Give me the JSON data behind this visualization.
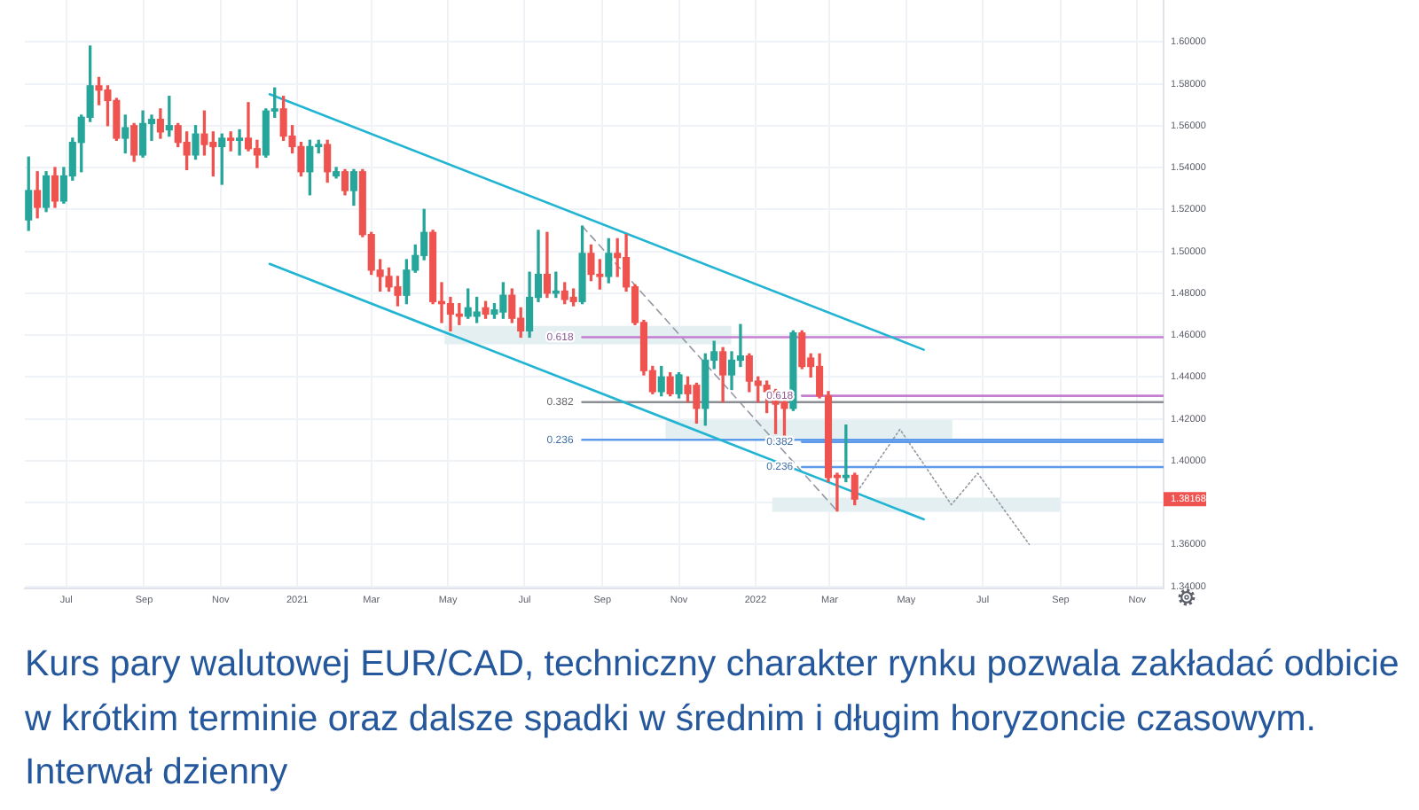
{
  "chart_data": {
    "type": "candlestick",
    "x": [
      "2020-06-01",
      "2020-06-08",
      "2020-06-15",
      "2020-06-22",
      "2020-06-29",
      "2020-07-06",
      "2020-07-13",
      "2020-07-20",
      "2020-07-27",
      "2020-08-03",
      "2020-08-10",
      "2020-08-17",
      "2020-08-24",
      "2020-08-31",
      "2020-09-07",
      "2020-09-14",
      "2020-09-21",
      "2020-09-28",
      "2020-10-05",
      "2020-10-12",
      "2020-10-19",
      "2020-10-26",
      "2020-11-02",
      "2020-11-09",
      "2020-11-16",
      "2020-11-23",
      "2020-11-30",
      "2020-12-07",
      "2020-12-14",
      "2020-12-21",
      "2020-12-28",
      "2021-01-04",
      "2021-01-11",
      "2021-01-18",
      "2021-01-25",
      "2021-02-01",
      "2021-02-08",
      "2021-02-15",
      "2021-02-22",
      "2021-03-01",
      "2021-03-08",
      "2021-03-15",
      "2021-03-22",
      "2021-03-29",
      "2021-04-05",
      "2021-04-12",
      "2021-04-19",
      "2021-04-26",
      "2021-05-03",
      "2021-05-10",
      "2021-05-17",
      "2021-05-24",
      "2021-05-31",
      "2021-06-07",
      "2021-06-14",
      "2021-06-21",
      "2021-06-28",
      "2021-07-05",
      "2021-07-12",
      "2021-07-19",
      "2021-07-26",
      "2021-08-02",
      "2021-08-09",
      "2021-08-16",
      "2021-08-23",
      "2021-08-30",
      "2021-09-06",
      "2021-09-13",
      "2021-09-20",
      "2021-09-27",
      "2021-10-04",
      "2021-10-11",
      "2021-10-18",
      "2021-10-25",
      "2021-11-01",
      "2021-11-08",
      "2021-11-15",
      "2021-11-22",
      "2021-11-29",
      "2021-12-06",
      "2021-12-13",
      "2021-12-20",
      "2021-12-27",
      "2022-01-03",
      "2022-01-10",
      "2022-01-17",
      "2022-01-24",
      "2022-01-31",
      "2022-02-07",
      "2022-02-14",
      "2022-02-21",
      "2022-02-28",
      "2022-03-07",
      "2022-03-14",
      "2022-03-21"
    ],
    "ohlc": [
      [
        1.515,
        1.545,
        1.51,
        1.529
      ],
      [
        1.529,
        1.538,
        1.516,
        1.521
      ],
      [
        1.521,
        1.538,
        1.519,
        1.536
      ],
      [
        1.536,
        1.54,
        1.521,
        1.524
      ],
      [
        1.524,
        1.54,
        1.523,
        1.536
      ],
      [
        1.536,
        1.554,
        1.534,
        1.552
      ],
      [
        1.552,
        1.565,
        1.538,
        1.564
      ],
      [
        1.564,
        1.598,
        1.562,
        1.579
      ],
      [
        1.579,
        1.583,
        1.57,
        1.577
      ],
      [
        1.577,
        1.579,
        1.56,
        1.572
      ],
      [
        1.572,
        1.573,
        1.553,
        1.554
      ],
      [
        1.554,
        1.565,
        1.547,
        1.559
      ],
      [
        1.56,
        1.561,
        1.543,
        1.546
      ],
      [
        1.546,
        1.567,
        1.545,
        1.561
      ],
      [
        1.561,
        1.565,
        1.553,
        1.563
      ],
      [
        1.563,
        1.568,
        1.554,
        1.557
      ],
      [
        1.558,
        1.574,
        1.555,
        1.56
      ],
      [
        1.56,
        1.561,
        1.55,
        1.552
      ],
      [
        1.552,
        1.557,
        1.539,
        1.546
      ],
      [
        1.546,
        1.56,
        1.544,
        1.556
      ],
      [
        1.556,
        1.567,
        1.546,
        1.551
      ],
      [
        1.552,
        1.557,
        1.536,
        1.55
      ],
      [
        1.55,
        1.556,
        1.532,
        1.554
      ],
      [
        1.554,
        1.557,
        1.548,
        1.553
      ],
      [
        1.553,
        1.558,
        1.546,
        1.554
      ],
      [
        1.554,
        1.571,
        1.548,
        1.549
      ],
      [
        1.549,
        1.553,
        1.54,
        1.546
      ],
      [
        1.546,
        1.568,
        1.545,
        1.567
      ],
      [
        1.567,
        1.578,
        1.564,
        1.568
      ],
      [
        1.568,
        1.574,
        1.553,
        1.555
      ],
      [
        1.555,
        1.56,
        1.547,
        1.55
      ],
      [
        1.55,
        1.552,
        1.536,
        1.538
      ],
      [
        1.538,
        1.553,
        1.527,
        1.55
      ],
      [
        1.55,
        1.553,
        1.547,
        1.551
      ],
      [
        1.551,
        1.553,
        1.533,
        1.538
      ],
      [
        1.536,
        1.54,
        1.535,
        1.538
      ],
      [
        1.538,
        1.539,
        1.527,
        1.529
      ],
      [
        1.529,
        1.539,
        1.522,
        1.538
      ],
      [
        1.538,
        1.539,
        1.507,
        1.508
      ],
      [
        1.508,
        1.509,
        1.489,
        1.491
      ],
      [
        1.491,
        1.496,
        1.481,
        1.488
      ],
      [
        1.488,
        1.492,
        1.481,
        1.483
      ],
      [
        1.483,
        1.488,
        1.474,
        1.479
      ],
      [
        1.479,
        1.496,
        1.475,
        1.491
      ],
      [
        1.491,
        1.503,
        1.49,
        1.498
      ],
      [
        1.498,
        1.52,
        1.496,
        1.509
      ],
      [
        1.509,
        1.51,
        1.475,
        1.476
      ],
      [
        1.476,
        1.485,
        1.466,
        1.475
      ],
      [
        1.475,
        1.478,
        1.462,
        1.47
      ],
      [
        1.47,
        1.475,
        1.465,
        1.469
      ],
      [
        1.469,
        1.482,
        1.468,
        1.473
      ],
      [
        1.469,
        1.478,
        1.466,
        1.471
      ],
      [
        1.473,
        1.476,
        1.468,
        1.47
      ],
      [
        1.47,
        1.475,
        1.468,
        1.472
      ],
      [
        1.471,
        1.485,
        1.468,
        1.479
      ],
      [
        1.479,
        1.482,
        1.466,
        1.468
      ],
      [
        1.468,
        1.473,
        1.459,
        1.462
      ],
      [
        1.462,
        1.49,
        1.459,
        1.478
      ],
      [
        1.478,
        1.51,
        1.476,
        1.489
      ],
      [
        1.489,
        1.509,
        1.478,
        1.48
      ],
      [
        1.48,
        1.49,
        1.478,
        1.481
      ],
      [
        1.481,
        1.485,
        1.475,
        1.477
      ],
      [
        1.478,
        1.482,
        1.474,
        1.476
      ],
      [
        1.476,
        1.512,
        1.475,
        1.499
      ],
      [
        1.499,
        1.503,
        1.486,
        1.489
      ],
      [
        1.489,
        1.496,
        1.482,
        1.488
      ],
      [
        1.488,
        1.506,
        1.485,
        1.499
      ],
      [
        1.499,
        1.506,
        1.488,
        1.497
      ],
      [
        1.497,
        1.508,
        1.481,
        1.483
      ],
      [
        1.483,
        1.484,
        1.465,
        1.466
      ],
      [
        1.466,
        1.467,
        1.441,
        1.443
      ],
      [
        1.443,
        1.445,
        1.432,
        1.433
      ],
      [
        1.433,
        1.445,
        1.431,
        1.44
      ],
      [
        1.44,
        1.442,
        1.431,
        1.432
      ],
      [
        1.432,
        1.442,
        1.43,
        1.441
      ],
      [
        1.436,
        1.44,
        1.428,
        1.432
      ],
      [
        1.436,
        1.437,
        1.418,
        1.425
      ],
      [
        1.425,
        1.451,
        1.417,
        1.448
      ],
      [
        1.448,
        1.457,
        1.444,
        1.452
      ],
      [
        1.452,
        1.454,
        1.428,
        1.441
      ],
      [
        1.441,
        1.452,
        1.434,
        1.448
      ],
      [
        1.448,
        1.465,
        1.445,
        1.45
      ],
      [
        1.45,
        1.451,
        1.433,
        1.438
      ],
      [
        1.438,
        1.44,
        1.428,
        1.436
      ],
      [
        1.436,
        1.438,
        1.423,
        1.433
      ],
      [
        1.433,
        1.434,
        1.413,
        1.427
      ],
      [
        1.428,
        1.431,
        1.411,
        1.425
      ],
      [
        1.425,
        1.462,
        1.424,
        1.461
      ],
      [
        1.461,
        1.462,
        1.444,
        1.445
      ],
      [
        1.449,
        1.451,
        1.44,
        1.445
      ],
      [
        1.445,
        1.451,
        1.43,
        1.431
      ],
      [
        1.431,
        1.433,
        1.39,
        1.392
      ],
      [
        1.393,
        1.394,
        1.376,
        1.392
      ],
      [
        1.392,
        1.417,
        1.39,
        1.393
      ],
      [
        1.393,
        1.394,
        1.379,
        1.38168
      ]
    ],
    "colors": [
      "#26a69a",
      "#ef5350",
      "#26a69a",
      "#ef5350",
      "#26a69a",
      "#26a69a",
      "#26a69a",
      "#26a69a",
      "#ef5350",
      "#ef5350",
      "#ef5350",
      "#26a69a",
      "#ef5350",
      "#26a69a",
      "#26a69a",
      "#ef5350",
      "#26a69a",
      "#ef5350",
      "#ef5350",
      "#26a69a",
      "#ef5350",
      "#ef5350",
      "#26a69a",
      "#ef5350",
      "#26a69a",
      "#ef5350",
      "#ef5350",
      "#26a69a",
      "#26a69a",
      "#ef5350",
      "#ef5350",
      "#ef5350",
      "#26a69a",
      "#26a69a",
      "#ef5350",
      "#26a69a",
      "#ef5350",
      "#26a69a",
      "#ef5350",
      "#ef5350",
      "#ef5350",
      "#ef5350",
      "#ef5350",
      "#26a69a",
      "#26a69a",
      "#26a69a",
      "#ef5350",
      "#ef5350",
      "#ef5350",
      "#ef5350",
      "#26a69a",
      "#26a69a",
      "#ef5350",
      "#26a69a",
      "#26a69a",
      "#ef5350",
      "#ef5350",
      "#26a69a",
      "#26a69a",
      "#ef5350",
      "#26a69a",
      "#ef5350",
      "#ef5350",
      "#26a69a",
      "#ef5350",
      "#ef5350",
      "#26a69a",
      "#ef5350",
      "#ef5350",
      "#ef5350",
      "#ef5350",
      "#ef5350",
      "#26a69a",
      "#ef5350",
      "#26a69a",
      "#ef5350",
      "#ef5350",
      "#26a69a",
      "#26a69a",
      "#ef5350",
      "#26a69a",
      "#26a69a",
      "#ef5350",
      "#ef5350",
      "#ef5350",
      "#ef5350",
      "#ef5350",
      "#26a69a",
      "#ef5350",
      "#ef5350",
      "#ef5350",
      "#ef5350",
      "#ef5350",
      "#26a69a",
      "#ef5350"
    ],
    "series": [
      {
        "type": "line",
        "x": [
          "2021-04-29",
          "2021-12-12"
        ],
        "values": [
          null,
          null
        ],
        "lower": [
          1.456,
          1.456
        ],
        "upper": [
          1.464,
          1.464
        ],
        "color": "#e4eff1"
      },
      {
        "type": "line",
        "x": [
          "2021-10-22",
          "2022-06-06"
        ],
        "values": [
          null,
          null
        ],
        "lower": [
          1.411,
          1.411
        ],
        "upper": [
          1.419,
          1.419
        ],
        "color": "#e4eff1"
      },
      {
        "type": "line",
        "x": [
          "2022-01-15",
          "2022-08-31"
        ],
        "values": [
          null,
          null
        ],
        "lower": [
          1.376,
          1.376
        ],
        "upper": [
          1.382,
          1.382
        ],
        "color": "#e4eff1"
      },
      {
        "type": "line",
        "x": [
          "2020-12-10",
          "2022-05-15"
        ],
        "values": [
          1.575,
          1.453
        ],
        "color": "#22b5d3",
        "line_style": "solid"
      },
      {
        "type": "line",
        "x": [
          "2020-12-10",
          "2022-05-15"
        ],
        "values": [
          1.494,
          1.372
        ],
        "color": "#22b5d3",
        "line_style": "solid"
      },
      {
        "type": "line",
        "x": [
          "2021-08-16",
          "2022-11-22"
        ],
        "values": [
          1.459,
          1.459
        ],
        "color": "#c47fd1",
        "line_style": "solid"
      },
      {
        "type": "line",
        "x": [
          "2021-08-16",
          "2022-11-22"
        ],
        "values": [
          1.428,
          1.428
        ],
        "color": "#8c8e96",
        "line_style": "solid"
      },
      {
        "type": "line",
        "x": [
          "2021-08-16",
          "2022-11-22"
        ],
        "values": [
          1.41,
          1.41
        ],
        "color": "#5d9bea",
        "line_style": "solid"
      },
      {
        "type": "line",
        "x": [
          "2022-02-07",
          "2022-11-22"
        ],
        "values": [
          1.431,
          1.431
        ],
        "color": "#c47fd1",
        "line_style": "solid"
      },
      {
        "type": "line",
        "x": [
          "2022-02-07",
          "2022-11-22"
        ],
        "values": [
          1.409,
          1.409
        ],
        "color": "#5d9bea",
        "line_style": "solid"
      },
      {
        "type": "line",
        "x": [
          "2022-02-07",
          "2022-11-22"
        ],
        "values": [
          1.397,
          1.397
        ],
        "color": "#5d9bea",
        "line_style": "solid"
      },
      {
        "type": "line",
        "x": [
          "2021-08-16",
          "2022-03-07"
        ],
        "values": [
          1.512,
          1.376
        ],
        "color": "#9598a1",
        "line_style": "dashed"
      },
      {
        "type": "line",
        "x": [
          "2022-03-25",
          "2022-04-26",
          "2022-06-06",
          "2022-06-27",
          "2022-08-07"
        ],
        "values": [
          1.387,
          1.415,
          1.379,
          1.394,
          1.36
        ],
        "color": "#9598a1",
        "line_style": "dotted"
      }
    ],
    "xlim": [
      "2020-05-29",
      "2022-11-22"
    ],
    "xticks": [
      {
        "value": "2020-07-01",
        "label": "Jul"
      },
      {
        "value": "2020-09-01",
        "label": "Sep"
      },
      {
        "value": "2020-11-01",
        "label": "Nov"
      },
      {
        "value": "2021-01-01",
        "label": "2021"
      },
      {
        "value": "2021-03-01",
        "label": "Mar"
      },
      {
        "value": "2021-05-01",
        "label": "May"
      },
      {
        "value": "2021-07-01",
        "label": "Jul"
      },
      {
        "value": "2021-09-01",
        "label": "Sep"
      },
      {
        "value": "2021-11-01",
        "label": "Nov"
      },
      {
        "value": "2022-01-01",
        "label": "2022"
      },
      {
        "value": "2022-03-01",
        "label": "Mar"
      },
      {
        "value": "2022-05-01",
        "label": "May"
      },
      {
        "value": "2022-07-01",
        "label": "Jul"
      },
      {
        "value": "2022-09-01",
        "label": "Sep"
      },
      {
        "value": "2022-11-01",
        "label": "Nov"
      }
    ],
    "ylim": [
      1.339,
      1.62
    ],
    "yticks": [
      {
        "value": 1.34,
        "label": "1.34000"
      },
      {
        "value": 1.36,
        "label": "1.36000"
      },
      {
        "value": 1.38,
        "label": null
      },
      {
        "value": 1.4,
        "label": "1.40000"
      },
      {
        "value": 1.42,
        "label": "1.42000"
      },
      {
        "value": 1.44,
        "label": "1.44000"
      },
      {
        "value": 1.46,
        "label": "1.46000"
      },
      {
        "value": 1.48,
        "label": "1.48000"
      },
      {
        "value": 1.5,
        "label": "1.50000"
      },
      {
        "value": 1.52,
        "label": "1.52000"
      },
      {
        "value": 1.54,
        "label": "1.54000"
      },
      {
        "value": 1.56,
        "label": "1.56000"
      },
      {
        "value": 1.58,
        "label": "1.58000"
      },
      {
        "value": 1.6,
        "label": "1.60000"
      }
    ],
    "grid": true,
    "annotations": [
      "Kurs pary walutowej EUR/CAD, techniczny charakter rynku pozwala zakładać odbicie w krótkim terminie oraz dalsze spadki w średnim i długim horyzoncie czasowym. Interwał dzienny",
      {
        "text": "0.618",
        "x": "2021-08-16",
        "y": 1.459
      },
      {
        "text": "0.382",
        "x": "2021-08-16",
        "y": 1.428
      },
      {
        "text": "0.236",
        "x": "2021-08-16",
        "y": 1.41
      },
      {
        "text": "0.618",
        "x": "2022-02-07",
        "y": 1.431
      },
      {
        "text": "0.382",
        "x": "2022-02-07",
        "y": 1.409
      },
      {
        "text": "0.236",
        "x": "2022-02-07",
        "y": 1.397
      },
      {
        "text": "1.38168",
        "y": 1.38168
      }
    ]
  }
}
